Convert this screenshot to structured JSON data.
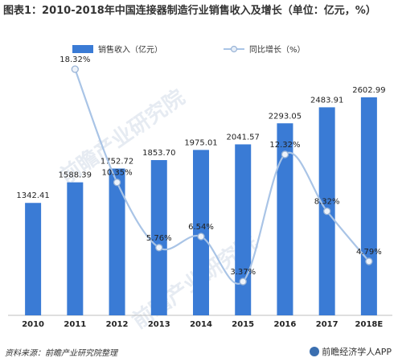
{
  "chart_data": {
    "type": "bar",
    "title": "图表1：2010-2018年中国连接器制造行业销售收入及增长（单位：亿元，%）",
    "categories": [
      "2010",
      "2011",
      "2012",
      "2013",
      "2014",
      "2015",
      "2016",
      "2017",
      "2018E"
    ],
    "series": [
      {
        "name": "销售收入（亿元）",
        "type": "bar",
        "color": "#3a7bd5",
        "values": [
          1342.41,
          1588.39,
          1752.72,
          1853.7,
          1975.01,
          2041.57,
          2293.05,
          2483.91,
          2602.99
        ],
        "labels": [
          "1342.41",
          "1588.39",
          "1752.72",
          "1853.70",
          "1975.01",
          "2041.57",
          "2293.05",
          "2483.91",
          "2602.99"
        ]
      },
      {
        "name": "同比增长（%）",
        "type": "line",
        "color": "#a9c4e6",
        "values": [
          null,
          18.32,
          10.35,
          5.76,
          6.54,
          3.37,
          12.32,
          8.32,
          4.79
        ],
        "labels": [
          "",
          "18.32%",
          "10.35%",
          "5.76%",
          "6.54%",
          "3.37%",
          "12.32%",
          "8.32%",
          "4.79%"
        ]
      }
    ],
    "legend_position": "top",
    "grid": false
  },
  "footer": {
    "source": "资料来源：前瞻产业研究院整理",
    "brand": "前瞻经济学人APP"
  },
  "watermarks": [
    "前瞻产业研究院",
    "前瞻产业研究院"
  ]
}
